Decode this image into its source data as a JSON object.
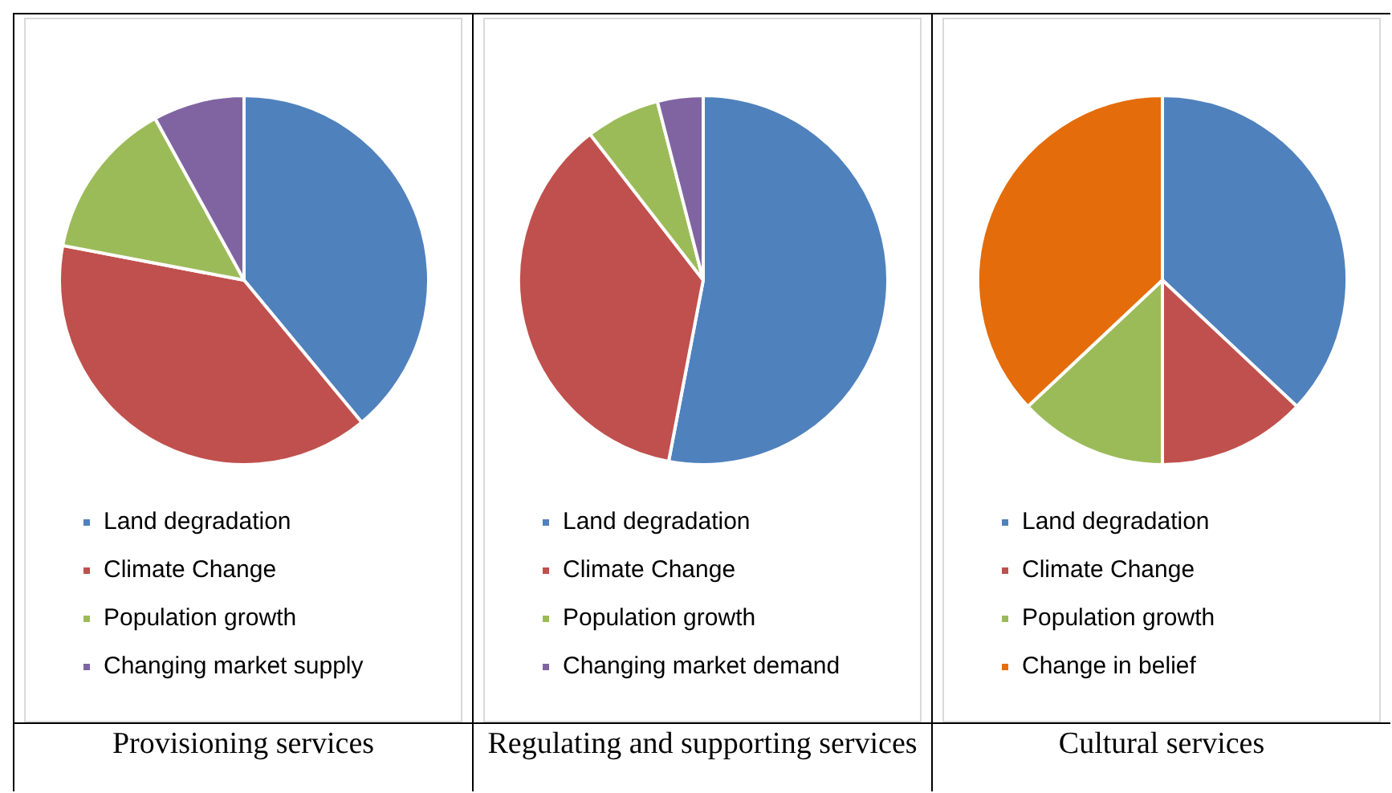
{
  "chart_data": [
    {
      "type": "pie",
      "title": "Provisioning services",
      "categories": [
        "Land degradation",
        "Climate Change",
        "Population growth",
        "Changing market supply"
      ],
      "values": [
        39,
        39,
        14,
        8
      ],
      "colors": [
        "#4f81bd",
        "#c0504d",
        "#9bbb59",
        "#8064a2"
      ],
      "legend": "bottom"
    },
    {
      "type": "pie",
      "title": "Regulating and supporting services",
      "categories": [
        "Land degradation",
        "Climate Change",
        "Population growth",
        "Changing market demand"
      ],
      "values": [
        53,
        36.5,
        6.5,
        4
      ],
      "colors": [
        "#4f81bd",
        "#c0504d",
        "#9bbb59",
        "#8064a2"
      ],
      "legend": "bottom"
    },
    {
      "type": "pie",
      "title": "Cultural services",
      "categories": [
        "Land degradation",
        "Climate Change",
        "Population growth",
        "Change in belief"
      ],
      "values": [
        37,
        13,
        13,
        37
      ],
      "colors": [
        "#4f81bd",
        "#c0504d",
        "#9bbb59",
        "#e46c0a"
      ],
      "legend": "bottom"
    }
  ]
}
